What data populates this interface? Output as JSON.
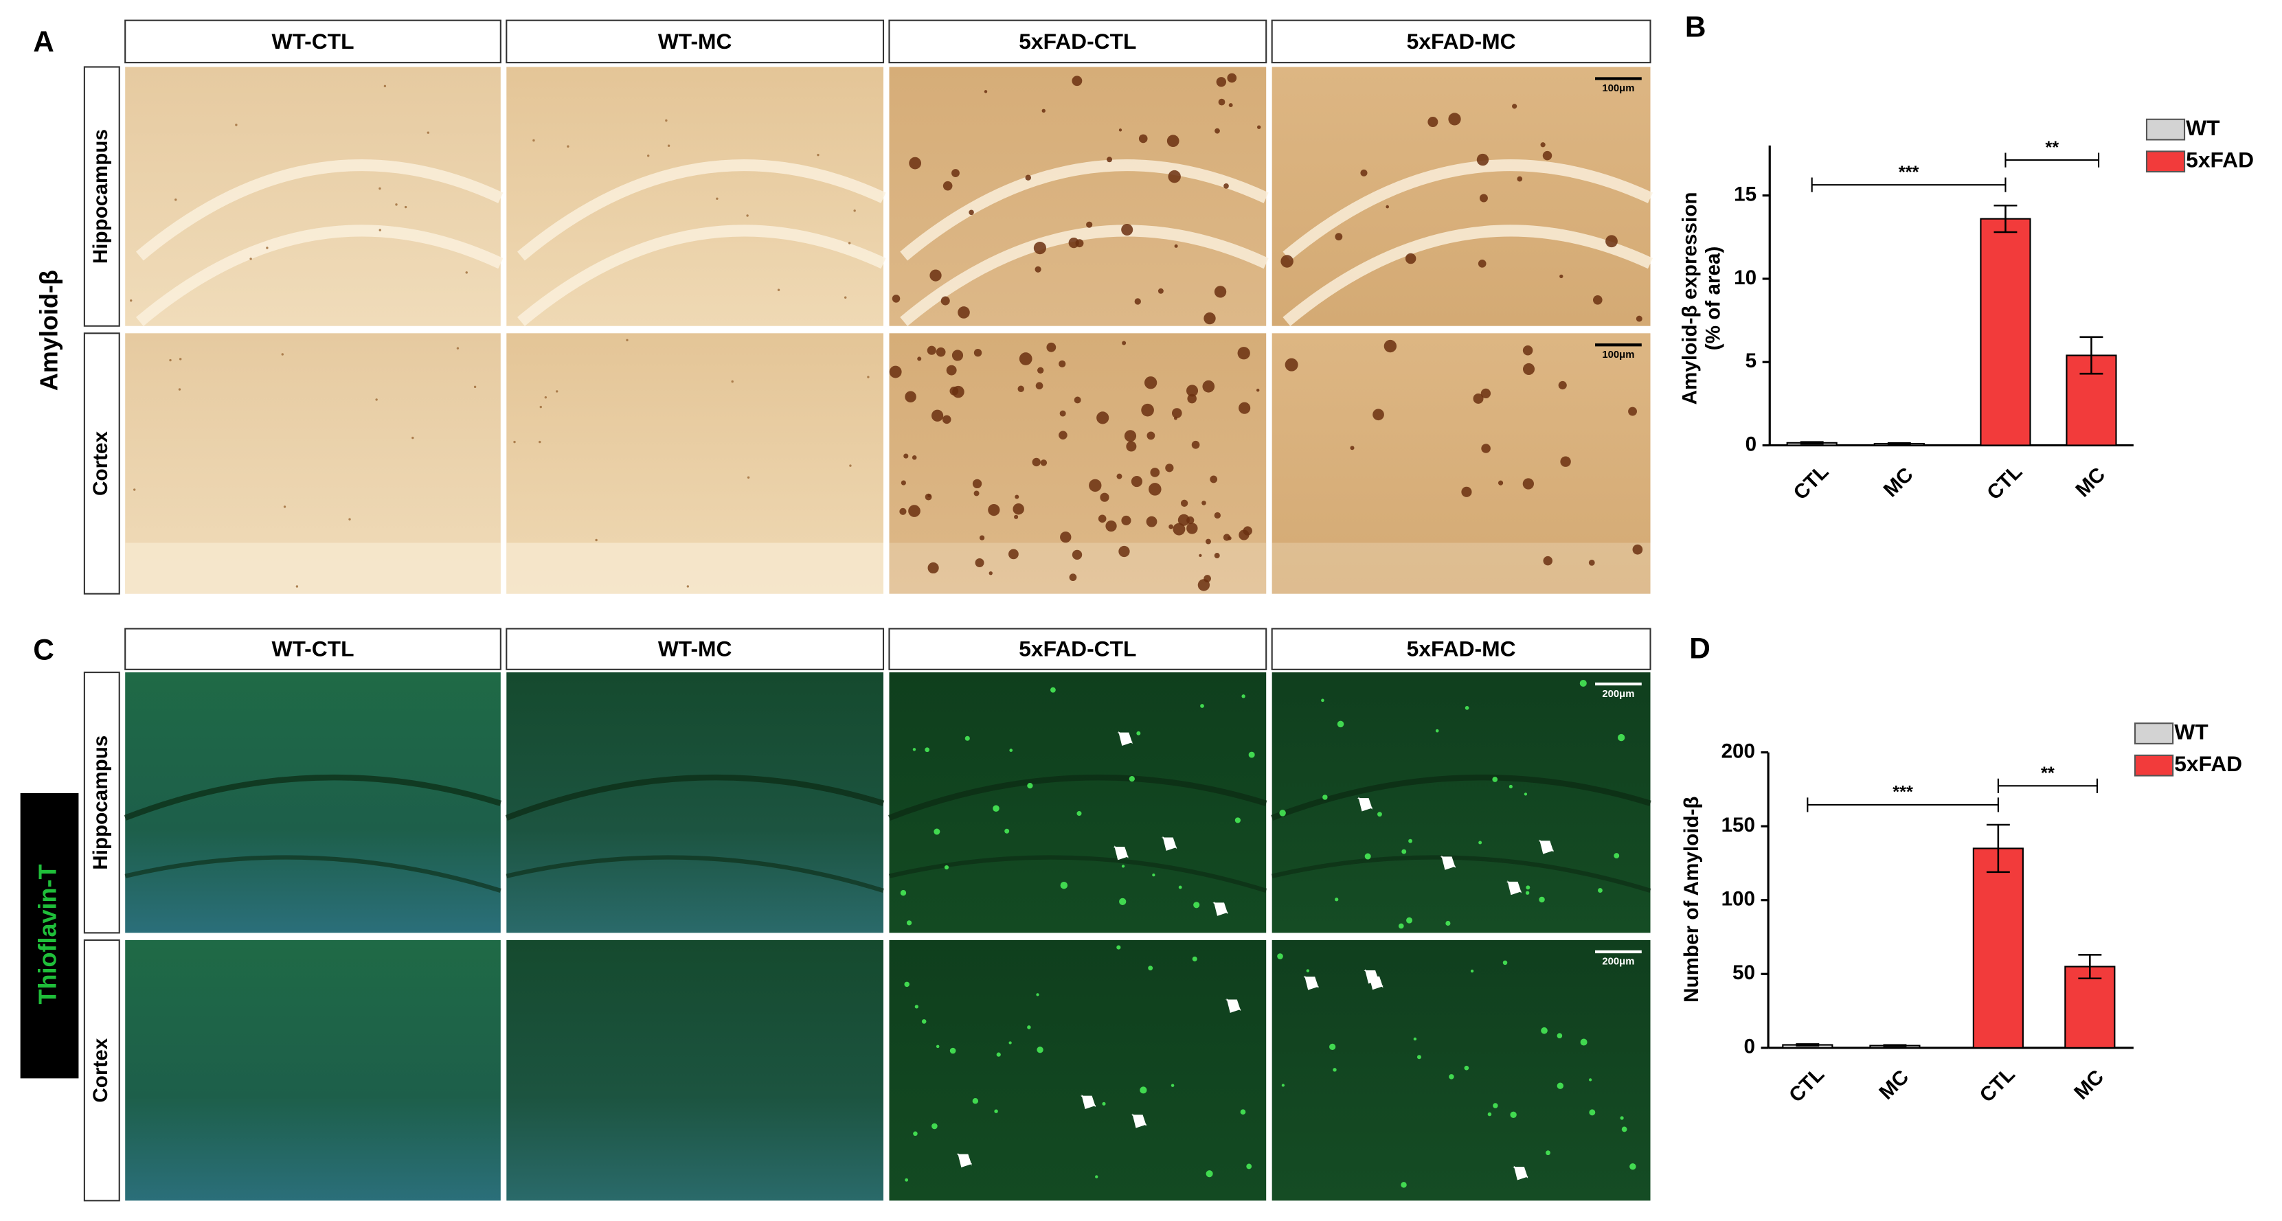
{
  "panel_a": {
    "label": "A",
    "stain": "Amyloid-β",
    "columns": [
      "WT-CTL",
      "WT-MC",
      "5xFAD-CTL",
      "5xFAD-MC"
    ],
    "rows": [
      "Hippocampus",
      "Cortex"
    ],
    "scale_bar": "100μm"
  },
  "panel_c": {
    "label": "C",
    "stain": "Thioflavin-T",
    "columns": [
      "WT-CTL",
      "WT-MC",
      "5xFAD-CTL",
      "5xFAD-MC"
    ],
    "rows": [
      "Hippocampus",
      "Cortex"
    ],
    "scale_bar": "200μm"
  },
  "chart_data": [
    {
      "type": "bar",
      "label": "B",
      "y_label": [
        "Amyloid-β expression",
        "(% of area)"
      ],
      "categories": [
        "CTL",
        "MC",
        "CTL",
        "MC"
      ],
      "series": [
        {
          "name": "WT",
          "color": "#d3d3d3",
          "values": [
            0.15,
            0.1,
            null,
            null
          ],
          "errors": [
            0.05,
            0.03,
            null,
            null
          ]
        },
        {
          "name": "5xFAD",
          "color": "#f23b3b",
          "values": [
            null,
            null,
            13.6,
            5.4
          ],
          "errors": [
            null,
            null,
            0.8,
            1.1
          ]
        }
      ],
      "ylim": [
        0,
        18
      ],
      "yticks": [
        0,
        5,
        10,
        15
      ],
      "legend": "upper right",
      "annotations": [
        "***",
        "**"
      ]
    },
    {
      "type": "bar",
      "label": "D",
      "y_label": [
        "Number of Amyloid-β"
      ],
      "categories": [
        "CTL",
        "MC",
        "CTL",
        "MC"
      ],
      "series": [
        {
          "name": "WT",
          "color": "#d3d3d3",
          "values": [
            2,
            1.5,
            null,
            null
          ],
          "errors": [
            0.5,
            0.4,
            null,
            null
          ]
        },
        {
          "name": "5xFAD",
          "color": "#f23b3b",
          "values": [
            null,
            null,
            135,
            55
          ],
          "errors": [
            null,
            null,
            16,
            8
          ]
        }
      ],
      "ylim": [
        0,
        200
      ],
      "yticks": [
        0,
        50,
        100,
        150,
        200
      ],
      "legend": "upper right",
      "annotations": [
        "***",
        "**"
      ]
    }
  ]
}
